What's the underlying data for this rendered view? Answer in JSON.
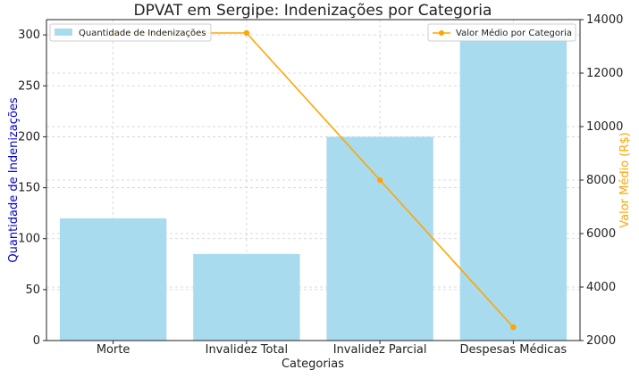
{
  "chart_data": {
    "type": "bar+line",
    "title": "DPVAT em Sergipe: Indenizações por Categoria",
    "xlabel": "Categorias",
    "ylabel_left": "Quantidade de Indenizações",
    "ylabel_right": "Valor Médio (R$)",
    "categories": [
      "Morte",
      "Invalidez Total",
      "Invalidez Parcial",
      "Despesas Médicas"
    ],
    "series": [
      {
        "name": "Quantidade de Indenizações",
        "type": "bar",
        "axis": "left",
        "color": "#a9dbee",
        "values": [
          120,
          85,
          200,
          300
        ]
      },
      {
        "name": "Valor Médio por Categoria",
        "type": "line",
        "axis": "right",
        "color": "#ffa500",
        "values": [
          13500,
          13500,
          8000,
          2500
        ]
      }
    ],
    "ylim_left": [
      0,
      315
    ],
    "yticks_left": [
      0,
      50,
      100,
      150,
      200,
      250,
      300
    ],
    "ylim_right": [
      2000,
      14000
    ],
    "yticks_right": [
      2000,
      4000,
      6000,
      8000,
      10000,
      12000,
      14000
    ],
    "grid": true,
    "legend_left_position": "top-left",
    "legend_right_position": "top-right",
    "colors": {
      "left_axis_label": "#0000cc",
      "right_axis_label": "#ffa500",
      "grid": "#cfcfcf"
    }
  }
}
